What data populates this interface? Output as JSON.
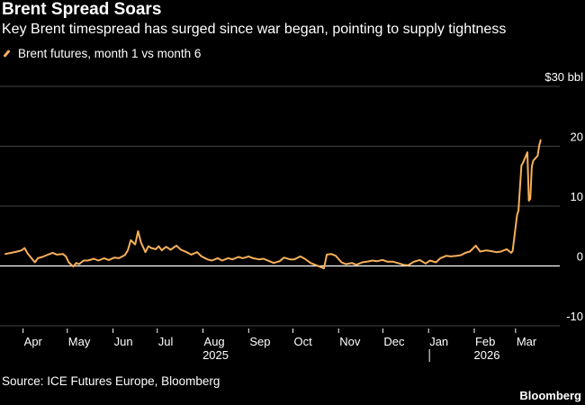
{
  "header": {
    "title": "Brent Spread Soars",
    "subtitle": "Key Brent timespread has surged since war began, pointing to supply tightness"
  },
  "footer": {
    "source": "Source: ICE Futures Europe, Bloomberg",
    "brand": "Bloomberg"
  },
  "colors": {
    "background": "#000000",
    "line": "#f6b05a",
    "grid": "#5a5a5a",
    "zero_line": "#ffffff",
    "text": "#ffffff"
  },
  "chart_data": {
    "type": "line",
    "title": "Brent Spread Soars",
    "subtitle": "Key Brent timespread has surged since war began, pointing to supply tightness",
    "xlabel": "",
    "ylabel": "",
    "y_unit_label": "$30 bbl",
    "ylim": [
      -10,
      30
    ],
    "y_ticks": [
      30,
      20,
      10,
      0,
      -10
    ],
    "y_tick_labels": [
      "$30 bbl",
      "20",
      "10",
      "0",
      "-10"
    ],
    "x_range": [
      "2025-03-20",
      "2026-03-31"
    ],
    "x_ticks": [
      {
        "date": "2025-04-01",
        "label": "Apr"
      },
      {
        "date": "2025-05-01",
        "label": "May"
      },
      {
        "date": "2025-06-01",
        "label": "Jun"
      },
      {
        "date": "2025-07-01",
        "label": "Jul"
      },
      {
        "date": "2025-08-01",
        "label": "Aug"
      },
      {
        "date": "2025-09-01",
        "label": "Sep"
      },
      {
        "date": "2025-10-01",
        "label": "Oct"
      },
      {
        "date": "2025-11-01",
        "label": "Nov"
      },
      {
        "date": "2025-12-01",
        "label": "Dec"
      },
      {
        "date": "2026-01-01",
        "label": "Jan"
      },
      {
        "date": "2026-02-01",
        "label": "Feb"
      },
      {
        "date": "2026-03-01",
        "label": "Mar"
      }
    ],
    "year_labels": [
      {
        "date": "2025-08-01",
        "label": "2025"
      },
      {
        "date": "2026-02-01",
        "label": "2026"
      }
    ],
    "year_divider": "2026-01-01",
    "grid": true,
    "legend_position": "top-left",
    "series": [
      {
        "name": "Brent futures, month 1 vs month 6",
        "color": "#f6b05a",
        "points": [
          [
            "2025-03-20",
            2.0
          ],
          [
            "2025-03-24",
            2.2
          ],
          [
            "2025-03-28",
            2.4
          ],
          [
            "2025-03-31",
            2.6
          ],
          [
            "2025-04-02",
            3.0
          ],
          [
            "2025-04-04",
            2.1
          ],
          [
            "2025-04-07",
            1.2
          ],
          [
            "2025-04-09",
            0.6
          ],
          [
            "2025-04-11",
            1.3
          ],
          [
            "2025-04-14",
            1.5
          ],
          [
            "2025-04-17",
            1.8
          ],
          [
            "2025-04-21",
            2.2
          ],
          [
            "2025-04-24",
            1.9
          ],
          [
            "2025-04-28",
            2.0
          ],
          [
            "2025-04-30",
            1.6
          ],
          [
            "2025-05-02",
            0.6
          ],
          [
            "2025-05-05",
            -0.1
          ],
          [
            "2025-05-07",
            0.5
          ],
          [
            "2025-05-09",
            0.3
          ],
          [
            "2025-05-12",
            0.9
          ],
          [
            "2025-05-15",
            0.9
          ],
          [
            "2025-05-19",
            1.2
          ],
          [
            "2025-05-22",
            0.9
          ],
          [
            "2025-05-26",
            1.3
          ],
          [
            "2025-05-29",
            1.0
          ],
          [
            "2025-06-02",
            1.4
          ],
          [
            "2025-06-05",
            1.3
          ],
          [
            "2025-06-09",
            1.8
          ],
          [
            "2025-06-11",
            2.6
          ],
          [
            "2025-06-13",
            4.3
          ],
          [
            "2025-06-16",
            3.6
          ],
          [
            "2025-06-18",
            5.8
          ],
          [
            "2025-06-20",
            3.9
          ],
          [
            "2025-06-23",
            2.3
          ],
          [
            "2025-06-25",
            3.3
          ],
          [
            "2025-06-27",
            3.0
          ],
          [
            "2025-06-30",
            2.8
          ],
          [
            "2025-07-02",
            3.3
          ],
          [
            "2025-07-04",
            2.6
          ],
          [
            "2025-07-07",
            3.2
          ],
          [
            "2025-07-10",
            2.7
          ],
          [
            "2025-07-14",
            3.4
          ],
          [
            "2025-07-17",
            2.7
          ],
          [
            "2025-07-21",
            2.3
          ],
          [
            "2025-07-24",
            1.9
          ],
          [
            "2025-07-28",
            2.3
          ],
          [
            "2025-07-31",
            1.6
          ],
          [
            "2025-08-04",
            1.1
          ],
          [
            "2025-08-07",
            0.9
          ],
          [
            "2025-08-11",
            1.3
          ],
          [
            "2025-08-14",
            0.9
          ],
          [
            "2025-08-18",
            1.3
          ],
          [
            "2025-08-21",
            1.1
          ],
          [
            "2025-08-25",
            1.5
          ],
          [
            "2025-08-28",
            1.3
          ],
          [
            "2025-09-01",
            1.6
          ],
          [
            "2025-09-04",
            1.3
          ],
          [
            "2025-09-08",
            1.1
          ],
          [
            "2025-09-11",
            1.2
          ],
          [
            "2025-09-15",
            0.8
          ],
          [
            "2025-09-18",
            0.5
          ],
          [
            "2025-09-22",
            0.8
          ],
          [
            "2025-09-25",
            1.4
          ],
          [
            "2025-09-29",
            1.1
          ],
          [
            "2025-10-02",
            1.1
          ],
          [
            "2025-10-06",
            1.6
          ],
          [
            "2025-10-09",
            1.2
          ],
          [
            "2025-10-13",
            0.5
          ],
          [
            "2025-10-16",
            0.2
          ],
          [
            "2025-10-20",
            -0.2
          ],
          [
            "2025-10-22",
            -0.4
          ],
          [
            "2025-10-24",
            1.9
          ],
          [
            "2025-10-27",
            2.0
          ],
          [
            "2025-10-30",
            1.7
          ],
          [
            "2025-11-03",
            0.6
          ],
          [
            "2025-11-06",
            0.3
          ],
          [
            "2025-11-10",
            0.5
          ],
          [
            "2025-11-13",
            0.2
          ],
          [
            "2025-11-17",
            0.6
          ],
          [
            "2025-11-20",
            0.7
          ],
          [
            "2025-11-24",
            0.9
          ],
          [
            "2025-11-27",
            0.8
          ],
          [
            "2025-12-01",
            1.0
          ],
          [
            "2025-12-04",
            0.7
          ],
          [
            "2025-12-08",
            0.7
          ],
          [
            "2025-12-11",
            0.5
          ],
          [
            "2025-12-15",
            0.2
          ],
          [
            "2025-12-18",
            0.1
          ],
          [
            "2025-12-22",
            0.7
          ],
          [
            "2025-12-26",
            1.0
          ],
          [
            "2025-12-30",
            0.4
          ],
          [
            "2026-01-02",
            0.9
          ],
          [
            "2026-01-06",
            0.6
          ],
          [
            "2026-01-09",
            1.3
          ],
          [
            "2026-01-13",
            1.7
          ],
          [
            "2026-01-16",
            1.6
          ],
          [
            "2026-01-20",
            1.7
          ],
          [
            "2026-01-23",
            1.8
          ],
          [
            "2026-01-26",
            2.2
          ],
          [
            "2026-01-29",
            2.4
          ],
          [
            "2026-02-02",
            3.4
          ],
          [
            "2026-02-05",
            2.4
          ],
          [
            "2026-02-09",
            2.6
          ],
          [
            "2026-02-12",
            2.5
          ],
          [
            "2026-02-16",
            2.3
          ],
          [
            "2026-02-19",
            2.4
          ],
          [
            "2026-02-23",
            2.8
          ],
          [
            "2026-02-26",
            2.2
          ],
          [
            "2026-02-27",
            2.5
          ],
          [
            "2026-03-02",
            8.5
          ],
          [
            "2026-03-03",
            9.3
          ],
          [
            "2026-03-04",
            13.2
          ],
          [
            "2026-03-05",
            16.8
          ],
          [
            "2026-03-06",
            17.2
          ],
          [
            "2026-03-09",
            19.0
          ],
          [
            "2026-03-10",
            10.9
          ],
          [
            "2026-03-11",
            11.2
          ],
          [
            "2026-03-12",
            16.6
          ],
          [
            "2026-03-13",
            17.6
          ],
          [
            "2026-03-16",
            18.4
          ],
          [
            "2026-03-17",
            20.1
          ],
          [
            "2026-03-18",
            21.0
          ]
        ]
      }
    ]
  }
}
